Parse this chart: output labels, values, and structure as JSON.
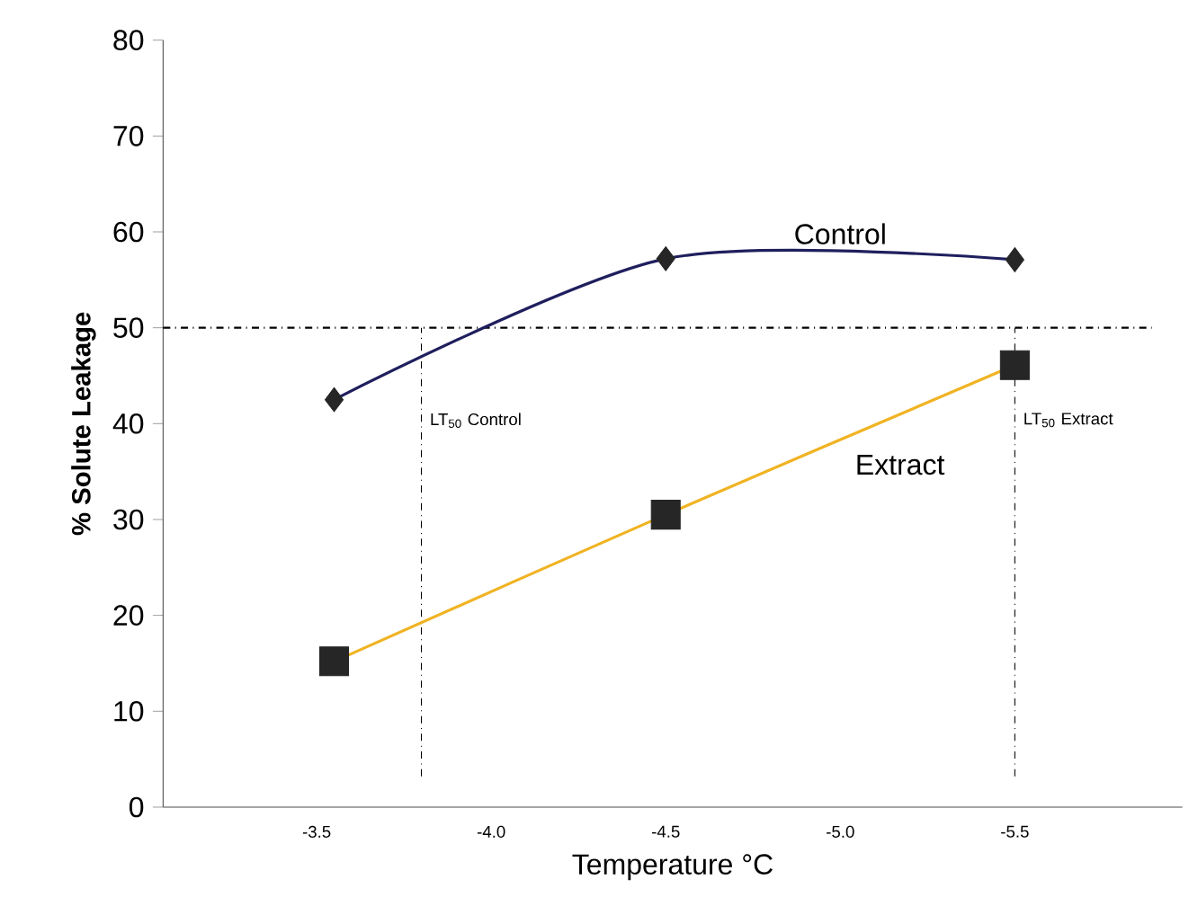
{
  "chart_data": {
    "type": "line",
    "xlabel": "Temperature °C",
    "ylabel": "% Solute Leakage",
    "series": [
      {
        "name": "Control",
        "color": "#1f1f5e",
        "marker": "diamond",
        "x": [
          -3.55,
          -4.5,
          -5.5
        ],
        "values": [
          42.5,
          57.2,
          57.1
        ]
      },
      {
        "name": "Extract",
        "color": "#f0b323",
        "marker": "square",
        "x": [
          -3.55,
          -4.5,
          -5.5
        ],
        "values": [
          15.2,
          30.5,
          46.1
        ]
      }
    ],
    "xlim": [
      -3.06,
      -5.98
    ],
    "ylim": [
      0,
      80
    ],
    "xticks": [
      {
        "value": -3.5,
        "label": "-3.5"
      },
      {
        "value": -4.0,
        "label": "-4.0"
      },
      {
        "value": -4.5,
        "label": "-4.5"
      },
      {
        "value": -5.0,
        "label": "-5.0"
      },
      {
        "value": -5.5,
        "label": "-5.5"
      }
    ],
    "yticks": [
      0,
      10,
      20,
      30,
      40,
      50,
      60,
      70,
      80
    ],
    "ref_lines": [
      {
        "axis": "y",
        "value": 50,
        "line_style": "dashdot"
      },
      {
        "axis": "x",
        "value": -3.8,
        "line_style": "dashdot",
        "label": "LT$_{50}$ Control"
      },
      {
        "axis": "x",
        "value": -5.5,
        "line_style": "dashdot",
        "label": "LT$_{50}$ Extract"
      }
    ],
    "grid": false
  }
}
